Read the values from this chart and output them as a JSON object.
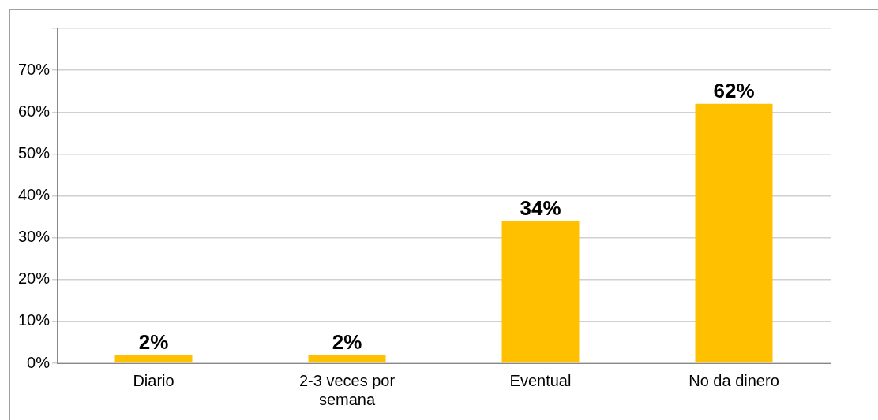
{
  "chart_data": {
    "type": "bar",
    "categories": [
      "Diario",
      "2-3 veces por semana",
      "Eventual",
      "No da dinero"
    ],
    "values": [
      2,
      2,
      34,
      62
    ],
    "value_labels": [
      "2%",
      "2%",
      "34%",
      "62%"
    ],
    "color": "#ffc000",
    "ylim": [
      0,
      80
    ],
    "yticks": [
      {
        "value": 0,
        "label": "0%"
      },
      {
        "value": 10,
        "label": "10%"
      },
      {
        "value": 20,
        "label": "20%"
      },
      {
        "value": 30,
        "label": "30%"
      },
      {
        "value": 40,
        "label": "40%"
      },
      {
        "value": 50,
        "label": "50%"
      },
      {
        "value": 60,
        "label": "60%"
      },
      {
        "value": 70,
        "label": "70%"
      },
      {
        "value": 80,
        "label": null
      }
    ],
    "grid": "y"
  }
}
